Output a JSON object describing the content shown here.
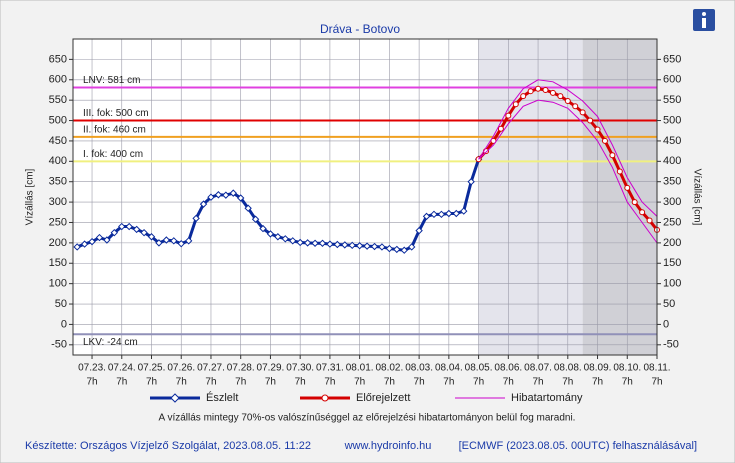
{
  "chart_data": {
    "type": "line",
    "title": "Dráva - Botovo",
    "y_label": "Vízállás [cm]",
    "note": "A vízállás mintegy 70%-os valószínűséggel az előrejelzési hibatartományon belül fog maradni.",
    "footer": [
      "Készítette: Országos Vízjelző Szolgálat, 2023.08.05. 11:22",
      "www.hydroinfo.hu",
      "[ECMWF (2023.08.05. 00UTC) felhasználásával]"
    ],
    "xlim": [
      -0.64,
      19
    ],
    "xticks": [
      {
        "value": 0,
        "label": "07.23."
      },
      {
        "value": 1,
        "label": "07.24."
      },
      {
        "value": 2,
        "label": "07.25."
      },
      {
        "value": 3,
        "label": "07.26."
      },
      {
        "value": 4,
        "label": "07.27."
      },
      {
        "value": 5,
        "label": "07.28."
      },
      {
        "value": 6,
        "label": "07.29."
      },
      {
        "value": 7,
        "label": "07.30."
      },
      {
        "value": 8,
        "label": "07.31."
      },
      {
        "value": 9,
        "label": "08.01."
      },
      {
        "value": 10,
        "label": "08.02."
      },
      {
        "value": 11,
        "label": "08.03."
      },
      {
        "value": 12,
        "label": "08.04."
      },
      {
        "value": 13,
        "label": "08.05."
      },
      {
        "value": 14,
        "label": "08.06."
      },
      {
        "value": 15,
        "label": "08.07."
      },
      {
        "value": 16,
        "label": "08.08."
      },
      {
        "value": 17,
        "label": "08.09."
      },
      {
        "value": 18,
        "label": "08.10."
      },
      {
        "value": 19,
        "label": "08.11."
      }
    ],
    "xtick_hour": "7h",
    "ylim": [
      -75,
      700
    ],
    "yticks": [
      -50,
      0,
      50,
      100,
      150,
      200,
      250,
      300,
      350,
      400,
      450,
      500,
      550,
      600,
      650
    ],
    "grid": true,
    "shaded_regions": [
      {
        "from": 13,
        "to": 16.5,
        "color": "#e4e4ec"
      },
      {
        "from": 16.5,
        "to": 19,
        "color": "#d0d0d6"
      }
    ],
    "reference_lines": [
      {
        "label": "LNV: 581 cm",
        "value": 581,
        "color": "#e040e0"
      },
      {
        "label": "III. fok: 500 cm",
        "value": 500,
        "color": "#e00000"
      },
      {
        "label": "II. fok: 460 cm",
        "value": 460,
        "color": "#f0a020"
      },
      {
        "label": "I. fok: 400 cm",
        "value": 400,
        "color": "#f0f080"
      },
      {
        "label": "LKV: -24 cm",
        "value": -24,
        "color": "#9090b8"
      }
    ],
    "series": [
      {
        "name": "Észlelt",
        "color": "#0a2a9c",
        "marker": "diamond",
        "x": [
          -0.5,
          -0.25,
          0,
          0.25,
          0.5,
          0.75,
          1,
          1.25,
          1.5,
          1.75,
          2,
          2.25,
          2.5,
          2.75,
          3,
          3.25,
          3.5,
          3.75,
          4,
          4.25,
          4.5,
          4.75,
          5,
          5.25,
          5.5,
          5.75,
          6,
          6.25,
          6.5,
          6.75,
          7,
          7.25,
          7.5,
          7.75,
          8,
          8.25,
          8.5,
          8.75,
          9,
          9.25,
          9.5,
          9.75,
          10,
          10.25,
          10.5,
          10.75,
          11,
          11.25,
          11.5,
          11.75,
          12,
          12.25,
          12.5,
          12.75,
          13
        ],
        "values": [
          190,
          197,
          203,
          213,
          207,
          225,
          240,
          240,
          233,
          225,
          215,
          200,
          207,
          205,
          198,
          205,
          260,
          295,
          312,
          318,
          317,
          322,
          310,
          285,
          258,
          235,
          222,
          215,
          210,
          205,
          201,
          200,
          199,
          199,
          197,
          196,
          195,
          194,
          193,
          192,
          191,
          190,
          186,
          184,
          182,
          190,
          230,
          265,
          270,
          270,
          272,
          272,
          278,
          350,
          405
        ]
      },
      {
        "name": "Előrejelzett",
        "color": "#d40000",
        "marker": "circle",
        "x": [
          13,
          13.25,
          13.5,
          13.75,
          14,
          14.25,
          14.5,
          14.75,
          15,
          15.25,
          15.5,
          15.75,
          16,
          16.25,
          16.5,
          16.75,
          17,
          17.25,
          17.5,
          17.75,
          18,
          18.25,
          18.5,
          18.75,
          19
        ],
        "values": [
          405,
          425,
          450,
          480,
          512,
          540,
          560,
          572,
          578,
          575,
          568,
          560,
          548,
          535,
          520,
          500,
          478,
          450,
          415,
          375,
          335,
          300,
          275,
          255,
          232
        ]
      },
      {
        "name": "Hibatartomány",
        "color": "#cc00cc",
        "type": "band",
        "x": [
          13,
          13.5,
          14,
          14.5,
          15,
          15.5,
          16,
          16.5,
          17,
          17.5,
          18,
          18.5,
          19
        ],
        "upper": [
          405,
          462,
          530,
          578,
          600,
          595,
          575,
          548,
          510,
          440,
          360,
          300,
          265
        ],
        "lower": [
          405,
          440,
          492,
          535,
          550,
          545,
          530,
          495,
          450,
          385,
          300,
          250,
          200
        ]
      }
    ]
  }
}
